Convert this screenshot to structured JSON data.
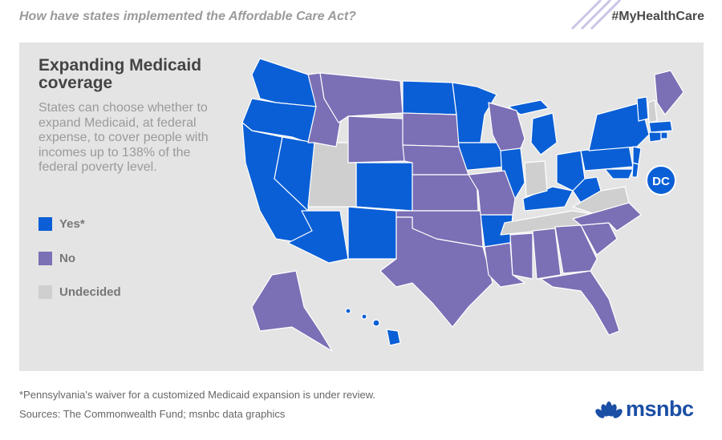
{
  "header": {
    "title": "How have states implemented the Affordable Care Act?",
    "hashtag": "#MyHealthCare"
  },
  "panel": {
    "headline": "Expanding Medicaid coverage",
    "description": "States can choose whether to expand Medicaid, at federal expense, to cover people with incomes up to 138% of the federal poverty level."
  },
  "legend": [
    {
      "label": "Yes*",
      "color": "#0a5fd6"
    },
    {
      "label": "No",
      "color": "#7b6fb5"
    },
    {
      "label": "Undecided",
      "color": "#cfcfcf"
    }
  ],
  "map": {
    "dc_label": "DC",
    "states": {
      "Yes": [
        "WA",
        "OR",
        "CA",
        "NV",
        "AZ",
        "NM",
        "CO",
        "ND",
        "MN",
        "IA",
        "IL",
        "AR",
        "KY",
        "MI",
        "OH",
        "WV",
        "MD",
        "DE",
        "NJ",
        "PA",
        "NY",
        "VT",
        "MA",
        "RI",
        "CT",
        "HI",
        "DC"
      ],
      "No": [
        "ID",
        "MT",
        "WY",
        "SD",
        "NE",
        "KS",
        "OK",
        "TX",
        "MO",
        "WI",
        "LA",
        "MS",
        "AL",
        "GA",
        "FL",
        "SC",
        "NC",
        "ME",
        "AK"
      ],
      "Undecided": [
        "UT",
        "IN",
        "TN",
        "VA",
        "NH"
      ]
    }
  },
  "footer": {
    "footnote": "*Pennsylvania's waiver for a customized Medicaid expansion is under review.",
    "sources": "Sources: The Commonwealth Fund; msnbc data graphics",
    "logo_text": "msnbc"
  },
  "colors": {
    "yes": "#0a5fd6",
    "no": "#7b6fb5",
    "undecided": "#cfcfcf",
    "panel": "#e4e4e4",
    "brand": "#1b4ea5"
  }
}
